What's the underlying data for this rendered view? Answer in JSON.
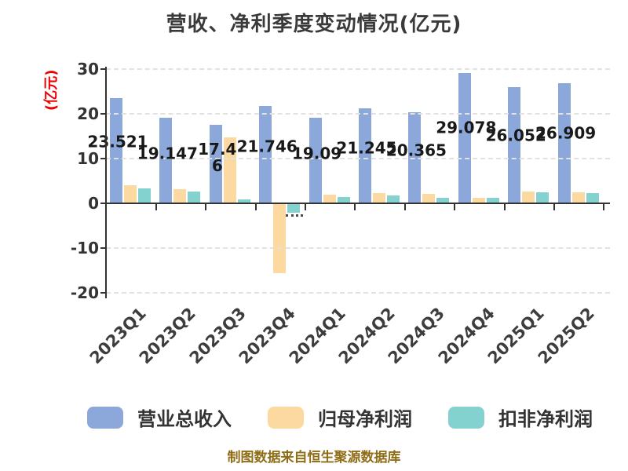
{
  "title": "营收、净利季度变动情况(亿元)",
  "y_axis_unit": "(亿元)",
  "footer": "制图数据来自恒生聚源数据库",
  "colors": {
    "revenue": "#8CA8DA",
    "net_profit": "#FBD9A0",
    "non_gaap_profit": "#83D2CF",
    "title_text": "#3a3a3a",
    "axis": "#333333",
    "grid": "#e2e2e2",
    "y_unit_text": "#ee0000",
    "footer_text": "#8f6c16",
    "bar_label_text": "#191919"
  },
  "legend": {
    "items": [
      {
        "label": "营业总收入",
        "color": "#8CA8DA"
      },
      {
        "label": "归母净利润",
        "color": "#FBD9A0"
      },
      {
        "label": "扣非净利润",
        "color": "#83D2CF"
      }
    ]
  },
  "chart_data": {
    "type": "bar",
    "title": "营收、净利季度变动情况(亿元)",
    "ylabel": "(亿元)",
    "categories": [
      "2023Q1",
      "2023Q2",
      "2023Q3",
      "2023Q4",
      "2024Q1",
      "2024Q2",
      "2024Q3",
      "2024Q4",
      "2025Q1",
      "2025Q2"
    ],
    "series": [
      {
        "name": "营业总收入",
        "key": "revenue",
        "color": "#8CA8DA",
        "values": [
          23.521,
          19.147,
          17.46,
          21.746,
          19.09,
          21.245,
          20.365,
          29.078,
          26.052,
          26.909
        ]
      },
      {
        "name": "归母净利润",
        "key": "net-profit",
        "color": "#FBD9A0",
        "values": [
          4.0,
          3.1,
          14.8,
          -15.6,
          1.9,
          2.2,
          2.1,
          1.3,
          2.6,
          2.5
        ]
      },
      {
        "name": "扣非净利润",
        "key": "non-gaap-profit",
        "color": "#83D2CF",
        "values": [
          3.4,
          2.6,
          0.8,
          -2.1,
          1.4,
          1.8,
          1.3,
          1.2,
          2.4,
          2.3
        ]
      }
    ],
    "bar_labels": [
      "23.521",
      "19.147",
      "17.4\n6",
      "21.746",
      "19.09",
      "21.245",
      "20.365",
      "29.078",
      "26.052",
      "26.909"
    ],
    "ylim": [
      -20,
      30
    ],
    "yticks": [
      30,
      20,
      10,
      0,
      -10,
      -20
    ],
    "grid": true,
    "gridline_style": "dashed",
    "legend_position": "bottom"
  }
}
